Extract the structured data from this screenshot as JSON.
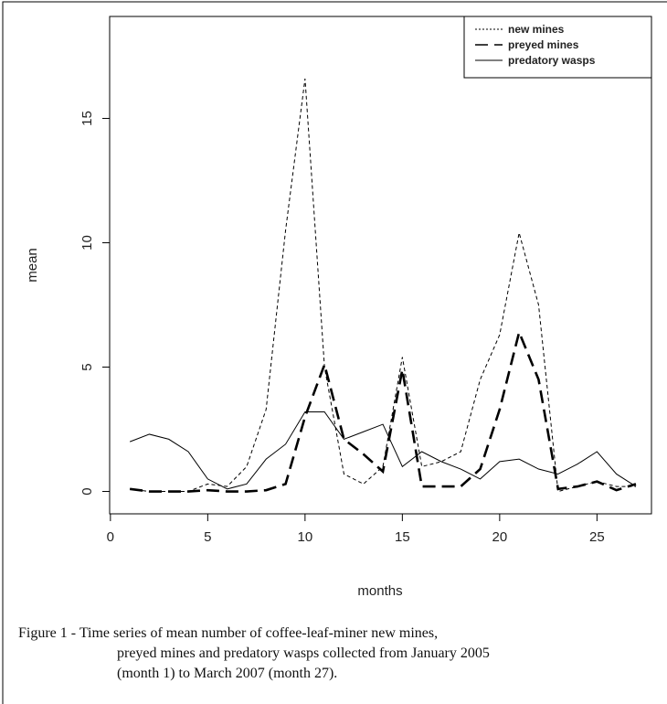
{
  "chart_data": {
    "type": "line",
    "x_label": "months",
    "y_label": "mean",
    "x": [
      1,
      2,
      3,
      4,
      5,
      6,
      7,
      8,
      9,
      10,
      11,
      12,
      13,
      14,
      15,
      16,
      17,
      18,
      19,
      20,
      21,
      22,
      23,
      24,
      25,
      26,
      27
    ],
    "series": [
      {
        "name": "new mines",
        "color": "#000000",
        "style": "dotted",
        "width": 1,
        "values": [
          0.1,
          0,
          0,
          0,
          0.3,
          0.2,
          1,
          3.3,
          10.5,
          16.6,
          5,
          0.7,
          0.3,
          1,
          5.4,
          1,
          1.2,
          1.6,
          4.5,
          6.3,
          10.4,
          7.5,
          0,
          0.2,
          0.4,
          0.2,
          0.2
        ]
      },
      {
        "name": "preyed mines",
        "color": "#000000",
        "style": "dashed",
        "width": 2.6,
        "values": [
          0.1,
          0,
          0,
          0,
          0.05,
          0,
          0,
          0.05,
          0.3,
          3,
          5.1,
          2.1,
          1.5,
          0.8,
          4.9,
          0.2,
          0.2,
          0.2,
          0.9,
          3.3,
          6.4,
          4.5,
          0.1,
          0.2,
          0.4,
          0.05,
          0.3
        ]
      },
      {
        "name": "predatory wasps",
        "color": "#000000",
        "style": "solid",
        "width": 1,
        "values": [
          2,
          2.3,
          2.1,
          1.6,
          0.5,
          0.1,
          0.3,
          1.3,
          1.9,
          3.2,
          3.2,
          2.1,
          2.4,
          2.7,
          1,
          1.6,
          1.2,
          0.9,
          0.5,
          1.2,
          1.3,
          0.9,
          0.7,
          1.1,
          1.6,
          0.7,
          0.2
        ]
      }
    ],
    "xlim": [
      -0.04,
      27.8
    ],
    "ylim": [
      -0.9,
      19.1
    ],
    "xticks": [
      0,
      5,
      10,
      15,
      20,
      25
    ],
    "yticks": [
      0,
      5,
      10,
      15
    ],
    "legend": "upper right",
    "caption": [
      "Figure 1 - Time series of mean number of coffee-leaf-miner new mines,",
      "preyed mines and predatory wasps collected from January 2005",
      "(month 1) to March 2007 (month 27)."
    ]
  }
}
